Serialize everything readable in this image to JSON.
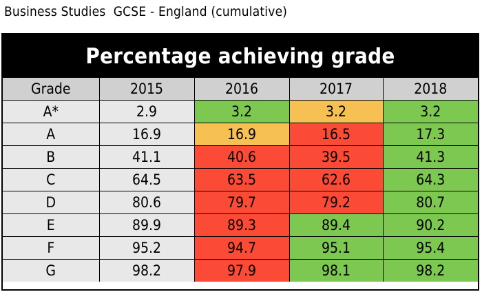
{
  "caption": "Business Studies  GCSE - England (cumulative)",
  "banner": "Percentage achieving grade",
  "colors": {
    "green": "#7cc851",
    "amber": "#f6c052",
    "red": "#fb4a35",
    "grey": "#e8e8e8",
    "header": "#d0d0d0"
  },
  "table": {
    "headers": [
      "Grade",
      "2015",
      "2016",
      "2017",
      "2018"
    ],
    "rows": [
      {
        "grade": "A*",
        "values": [
          "2.9",
          "3.2",
          "3.2",
          "3.2"
        ],
        "status": [
          "none",
          "green",
          "amber",
          "green"
        ]
      },
      {
        "grade": "A",
        "values": [
          "16.9",
          "16.9",
          "16.5",
          "17.3"
        ],
        "status": [
          "none",
          "amber",
          "red",
          "green"
        ]
      },
      {
        "grade": "B",
        "values": [
          "41.1",
          "40.6",
          "39.5",
          "41.3"
        ],
        "status": [
          "none",
          "red",
          "red",
          "green"
        ]
      },
      {
        "grade": "C",
        "values": [
          "64.5",
          "63.5",
          "62.6",
          "64.3"
        ],
        "status": [
          "none",
          "red",
          "red",
          "green"
        ]
      },
      {
        "grade": "D",
        "values": [
          "80.6",
          "79.7",
          "79.2",
          "80.7"
        ],
        "status": [
          "none",
          "red",
          "red",
          "green"
        ]
      },
      {
        "grade": "E",
        "values": [
          "89.9",
          "89.3",
          "89.4",
          "90.2"
        ],
        "status": [
          "none",
          "red",
          "green",
          "green"
        ]
      },
      {
        "grade": "F",
        "values": [
          "95.2",
          "94.7",
          "95.1",
          "95.4"
        ],
        "status": [
          "none",
          "red",
          "green",
          "green"
        ]
      },
      {
        "grade": "G",
        "values": [
          "98.2",
          "97.9",
          "98.1",
          "98.2"
        ],
        "status": [
          "none",
          "red",
          "green",
          "green"
        ]
      }
    ]
  }
}
